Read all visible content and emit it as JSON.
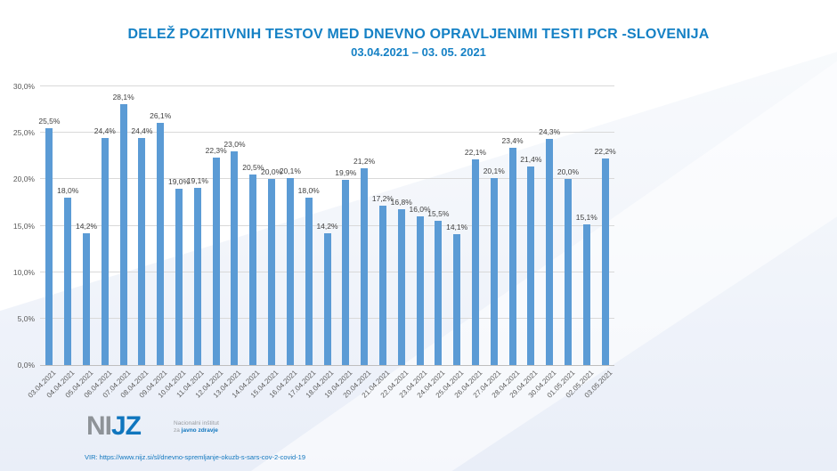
{
  "title": "DELEŽ POZITIVNIH TESTOV MED DNEVNO OPRAVLJENIMI TESTI PCR -SLOVENIJA",
  "subtitle": "03.04.2021 – 03. 05. 2021",
  "source": "VIR: https://www.nijz.si/sl/dnevno-spremljanje-okuzb-s-sars-cov-2-covid-19",
  "logo": {
    "ni": "NI",
    "jz": "JZ",
    "tagline_line1": "Nacionalni inštitut",
    "tagline_line2_prefix": "za ",
    "tagline_line2_bold": "javno zdravje"
  },
  "colors": {
    "bar": "#5b9bd5",
    "title": "#1581c5",
    "value_label": "#404040",
    "tick_label": "#595959",
    "gridline": "#d9d9d9",
    "axis_line": "#bfbfbf",
    "link": "#1076be"
  },
  "chart_data": {
    "type": "bar",
    "title": "DELEŽ POZITIVNIH TESTOV MED DNEVNO OPRAVLJENIMI TESTI PCR -SLOVENIJA",
    "subtitle": "03.04.2021 – 03. 05. 2021",
    "xlabel": "",
    "ylabel": "",
    "ylim": [
      0,
      30
    ],
    "ytick_step": 5,
    "ytick_labels": [
      "0,0%",
      "5,0%",
      "10,0%",
      "15,0%",
      "20,0%",
      "25,0%",
      "30,0%"
    ],
    "grid": true,
    "legend": "none",
    "categories": [
      "03.04.2021",
      "04.04.2021",
      "05.04.2021",
      "06.04.2021",
      "07.04.2021",
      "08.04.2021",
      "09.04.2021",
      "10.04.2021",
      "11.04.2021",
      "12.04.2021",
      "13.04.2021",
      "14.04.2021",
      "15.04.2021",
      "16.04.2021",
      "17.04.2021",
      "18.04.2021",
      "19.04.2021",
      "20.04.2021",
      "21.04.2021",
      "22.04.2021",
      "23.04.2021",
      "24.04.2021",
      "25.04.2021",
      "26.04.2021",
      "27.04.2021",
      "28.04.2021",
      "29.04.2021",
      "30.04.2021",
      "01.05.2021",
      "02.05.2021",
      "03.05.2021"
    ],
    "values": [
      25.5,
      18.0,
      14.2,
      24.4,
      28.1,
      24.4,
      26.1,
      19.0,
      19.1,
      22.3,
      23.0,
      20.5,
      20.0,
      20.1,
      18.0,
      14.2,
      19.9,
      21.2,
      17.2,
      16.8,
      16.0,
      15.5,
      14.1,
      22.1,
      20.1,
      23.4,
      21.4,
      24.3,
      20.0,
      15.1,
      22.2
    ],
    "value_labels": [
      "25,5%",
      "18,0%",
      "14,2%",
      "24,4%",
      "28,1%",
      "24,4%",
      "26,1%",
      "19,0%",
      "19,1%",
      "22,3%",
      "23,0%",
      "20,5%",
      "20,0%",
      "20,1%",
      "18,0%",
      "14,2%",
      "19,9%",
      "21,2%",
      "17,2%",
      "16,8%",
      "16,0%",
      "15,5%",
      "14,1%",
      "22,1%",
      "20,1%",
      "23,4%",
      "21,4%",
      "24,3%",
      "20,0%",
      "15,1%",
      "22,2%"
    ]
  }
}
